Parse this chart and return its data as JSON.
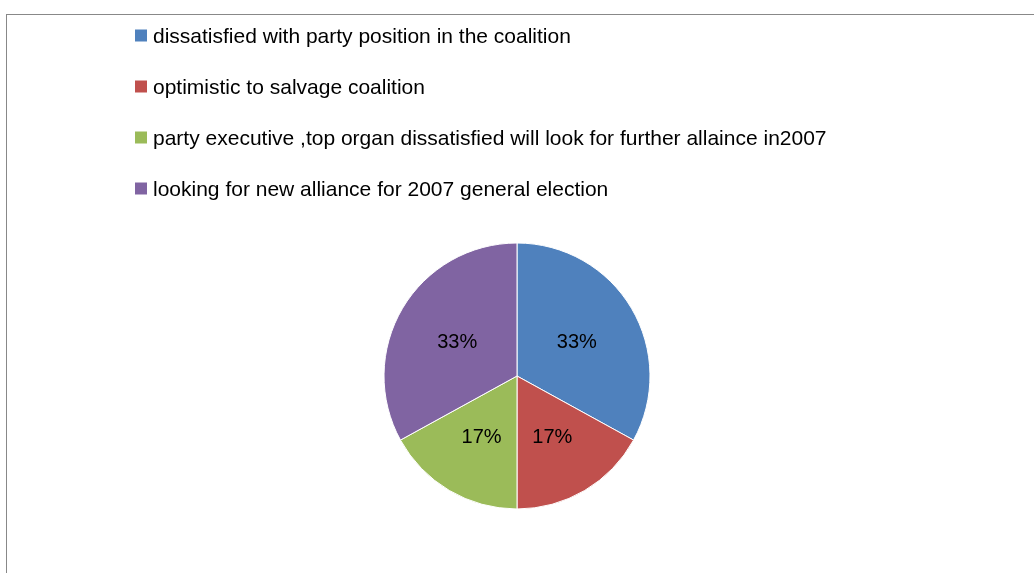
{
  "chart_data": {
    "type": "pie",
    "categories": [
      "dissatisfied with party position in the coalition",
      "optimistic to salvage coalition",
      "party executive ,top organ dissatisfied will look for further allaince in2007",
      "looking for new alliance for 2007 general election"
    ],
    "values": [
      33,
      17,
      17,
      33
    ],
    "value_labels": [
      "33%",
      "17%",
      "17%",
      "33%"
    ],
    "colors": [
      "#4f81bd",
      "#c0504d",
      "#9bbb59",
      "#8064a2"
    ],
    "legend": "top"
  }
}
